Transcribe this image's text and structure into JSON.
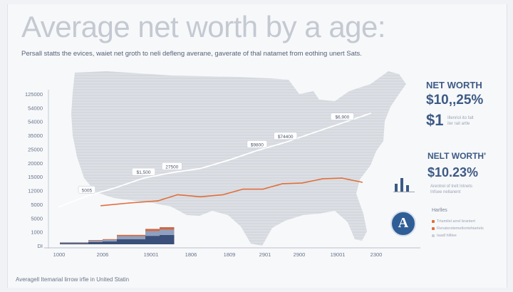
{
  "title": "Average net worth by a age:",
  "subtitle": "Persall statts the evices, waiet net groth to neli defleng averane, gaverate of thal natamet from eothing unert Sats.",
  "footer": "Averagell Itemarial lirrow irfie in United Statin",
  "side_panel": {
    "stat1_label": "NET WORTH",
    "stat1_value": "$10,,25%",
    "stat2_value": "$1",
    "stat2_note_line1": "Illenriol ito falt",
    "stat2_note_line2": "iler rait artle",
    "stat3_label": "NELT WORTH'",
    "stat3_value": "$10.23%",
    "stat3_note_line1": "Arentrel of trelt Intnets",
    "stat3_note_line2": "Infsee nellanent",
    "legend_title": "Harlles",
    "legend_item1": "Trtamilel arrel brantert",
    "legend_item2": "Renaterstemetlontehiartels",
    "legend_item3": "Iaadl hiltlee",
    "colors": {
      "accent": "#3d5a85",
      "orange": "#e06e3a",
      "seal": "#2f5e96"
    },
    "icons": [
      "bar-chart-icon",
      "seal-icon"
    ]
  },
  "chart_data": {
    "type": "line",
    "y_tick_labels": [
      "125000",
      "54000",
      "54000",
      "35000",
      "25000",
      "20000",
      "15000",
      "12000",
      "5000",
      "5000",
      "1000",
      "DI"
    ],
    "x_tick_labels": [
      "1000",
      "2006",
      "19001",
      "1806",
      "1809",
      "2901",
      "2900",
      "19001",
      "2300"
    ],
    "series": [
      {
        "color": "#ffffff",
        "points": [
          [
            0,
            2.8
          ],
          [
            1,
            3.6
          ],
          [
            2,
            4.2
          ],
          [
            3,
            4.9
          ],
          [
            4,
            5.3
          ],
          [
            5,
            5.6
          ],
          [
            6,
            6.2
          ],
          [
            7,
            6.9
          ],
          [
            8,
            7.5
          ],
          [
            9,
            8.2
          ],
          [
            10,
            8.9
          ],
          [
            11,
            9.6
          ]
        ],
        "labels": [
          {
            "i": 1,
            "text": "5005"
          },
          {
            "i": 3,
            "text": "$1,500"
          },
          {
            "i": 4,
            "text": "27500"
          },
          {
            "i": 7,
            "text": "$9800"
          },
          {
            "i": 8,
            "text": "$74400"
          },
          {
            "i": 10,
            "text": "$6,900"
          }
        ]
      },
      {
        "color": "#e06e3a",
        "points": [
          [
            1.5,
            2.9
          ],
          [
            2.5,
            3.1
          ],
          [
            3.5,
            3.25
          ],
          [
            4.2,
            3.7
          ],
          [
            5,
            3.55
          ],
          [
            5.8,
            3.7
          ],
          [
            6.5,
            4.1
          ],
          [
            7.2,
            4.1
          ],
          [
            7.9,
            4.5
          ],
          [
            8.6,
            4.55
          ],
          [
            9.3,
            4.85
          ],
          [
            10,
            4.9
          ],
          [
            10.7,
            4.6
          ]
        ]
      },
      {
        "type": "area",
        "x_range": [
          0,
          4
        ],
        "values": [
          0.12,
          0.12,
          0.25,
          0.3,
          0.55,
          0.55,
          0.9,
          1.0
        ]
      }
    ],
    "y_index_range": [
      0,
      11
    ],
    "x_index_range": [
      0,
      12
    ],
    "grid": false
  }
}
